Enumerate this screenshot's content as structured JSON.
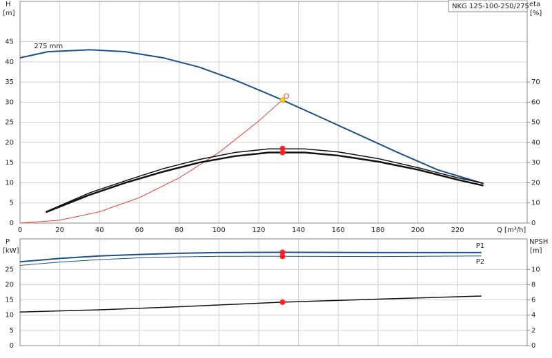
{
  "chart_data": [
    {
      "type": "line",
      "title": "NKG 125-100-250/275",
      "y_label": "H",
      "y_unit": "[m]",
      "y2_label": "eta",
      "y2_unit": "[%]",
      "x_label": "Q [m³/h]",
      "xlim": [
        0,
        255
      ],
      "xticks": [
        0,
        20,
        40,
        60,
        80,
        100,
        120,
        140,
        160,
        180,
        200,
        220
      ],
      "ylim": [
        0,
        55
      ],
      "yticks": [
        0,
        5,
        10,
        15,
        20,
        25,
        30,
        35,
        40,
        45
      ],
      "y2lim": [
        0,
        110
      ],
      "y2ticks": [
        0,
        10,
        20,
        30,
        40,
        50,
        60,
        70
      ],
      "grid": true,
      "series": [
        {
          "name": "275 mm",
          "color": "#1a4f8a",
          "width": 2,
          "x": [
            0,
            14,
            35,
            53,
            72,
            90,
            108,
            125,
            132,
            150,
            170,
            190,
            210,
            233
          ],
          "values": [
            41,
            42.5,
            43,
            42.5,
            41,
            38.7,
            35.5,
            32,
            30.5,
            26.5,
            22,
            17.5,
            13.2,
            9.8
          ]
        },
        {
          "color": "#f04030",
          "width": 1,
          "x": [
            0,
            20,
            40,
            60,
            80,
            100,
            120,
            134
          ],
          "values": [
            0,
            0.7,
            2.8,
            6.3,
            11.2,
            17.5,
            25.3,
            31.5
          ]
        },
        {
          "color": "#111111",
          "width": 1.5,
          "axis": "y2",
          "x": [
            13,
            35,
            53,
            72,
            90,
            108,
            125,
            143,
            160,
            180,
            200,
            220,
            233
          ],
          "values": [
            5.6,
            15,
            21,
            27,
            31.5,
            35,
            36.8,
            36.8,
            35.3,
            32,
            27.5,
            22.5,
            19.8
          ]
        },
        {
          "color": "#111111",
          "width": 2.5,
          "axis": "y2",
          "x": [
            13,
            35,
            53,
            72,
            90,
            108,
            125,
            143,
            160,
            180,
            200,
            220,
            233
          ],
          "values": [
            5.4,
            14,
            20,
            25.5,
            30,
            33.2,
            35,
            35,
            33.5,
            30.5,
            26.5,
            21.5,
            18.6
          ]
        }
      ],
      "markers": [
        {
          "x": 134,
          "y": 31.5,
          "color": "#f04030",
          "hollow": true
        },
        {
          "x": 132,
          "y": 30.5,
          "color": "#ffd21e"
        },
        {
          "x": 132,
          "y": 37,
          "color": "#ff2020",
          "axis": "y2"
        },
        {
          "x": 132,
          "y": 35,
          "color": "#ff2020",
          "axis": "y2"
        }
      ]
    },
    {
      "type": "line",
      "y_label": "P",
      "y_unit": "[kW]",
      "y2_label": "NPSH",
      "y2_unit": "[m]",
      "xlim": [
        0,
        255
      ],
      "xticks": [
        0,
        20,
        40,
        60,
        80,
        100,
        120,
        140,
        160,
        180,
        200,
        220
      ],
      "ylim": [
        0,
        35
      ],
      "yticks": [
        0,
        5,
        10,
        15,
        20,
        25
      ],
      "y2lim": [
        0,
        14
      ],
      "y2ticks": [
        0,
        2,
        4,
        6,
        8,
        10
      ],
      "grid": true,
      "series": [
        {
          "name": "P1",
          "color": "#1a4f8a",
          "width": 2,
          "x": [
            0,
            20,
            40,
            60,
            80,
            100,
            132,
            180,
            232
          ],
          "values": [
            27.5,
            28.6,
            29.4,
            29.9,
            30.3,
            30.5,
            30.6,
            30.5,
            30.5
          ]
        },
        {
          "name": "P2",
          "color": "#1a4f8a",
          "width": 1,
          "x": [
            0,
            20,
            40,
            60,
            80,
            100,
            132,
            180,
            232
          ],
          "values": [
            26.3,
            27.4,
            28.2,
            28.8,
            29.1,
            29.3,
            29.3,
            29.2,
            29.4
          ]
        },
        {
          "color": "#111111",
          "width": 1.5,
          "axis": "y2",
          "x": [
            0,
            40,
            80,
            132,
            180,
            232
          ],
          "values": [
            4.4,
            4.7,
            5.1,
            5.7,
            6.1,
            6.5
          ]
        }
      ],
      "markers": [
        {
          "x": 132,
          "y": 30.6,
          "color": "#ff2020"
        },
        {
          "x": 132,
          "y": 29.3,
          "color": "#ff2020"
        },
        {
          "x": 132,
          "y": 5.7,
          "color": "#ff2020",
          "axis": "y2"
        }
      ]
    }
  ]
}
